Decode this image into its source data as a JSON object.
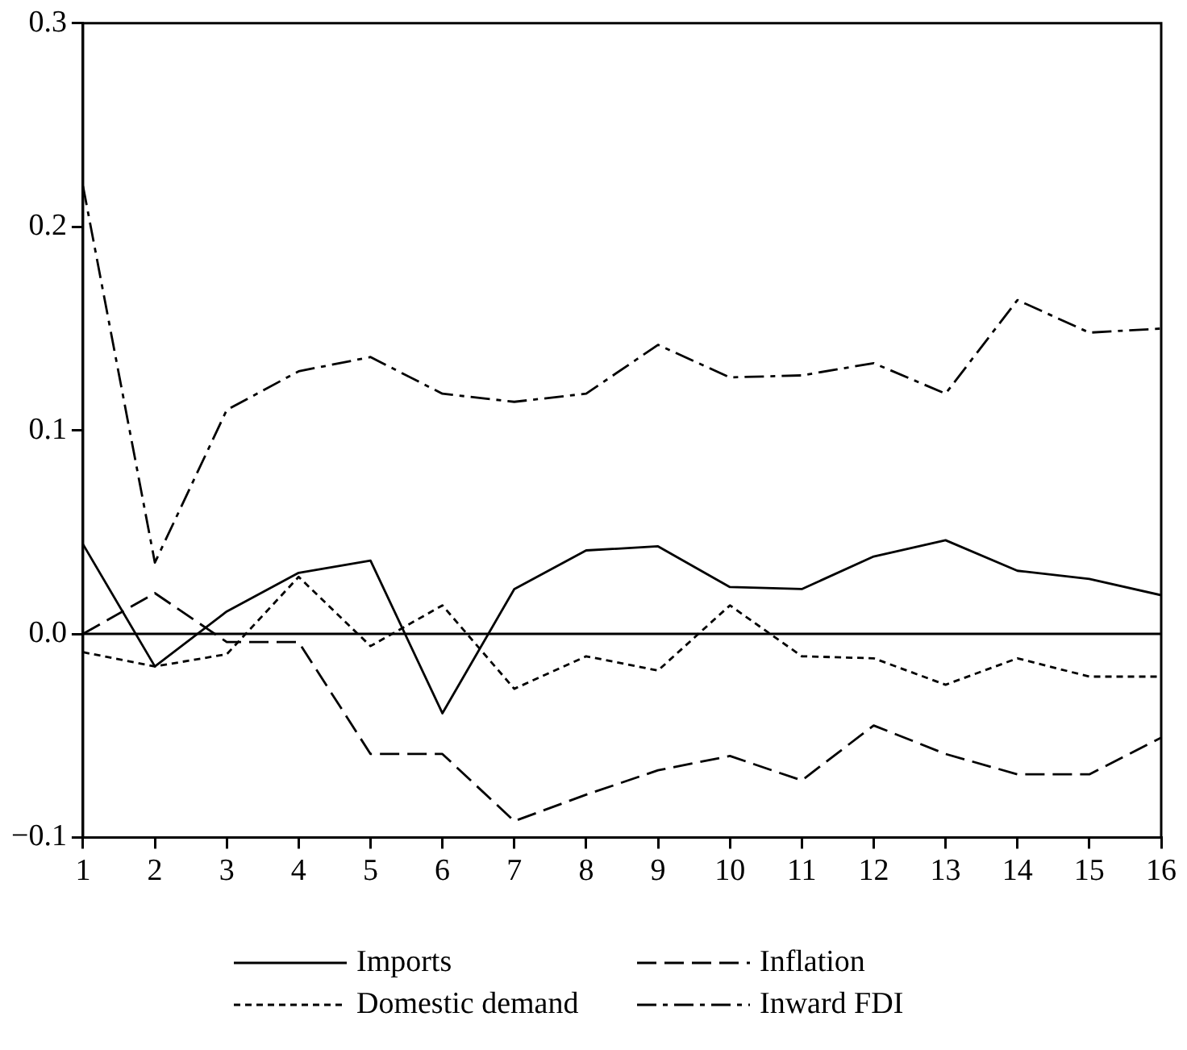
{
  "chart_data": {
    "type": "line",
    "x": [
      1,
      2,
      3,
      4,
      5,
      6,
      7,
      8,
      9,
      10,
      11,
      12,
      13,
      14,
      15,
      16
    ],
    "series": [
      {
        "name": "Imports",
        "color": "#000000",
        "line_style": "solid",
        "values": [
          0.044,
          -0.016,
          0.011,
          0.03,
          0.036,
          -0.039,
          0.022,
          0.041,
          0.043,
          0.023,
          0.022,
          0.038,
          0.046,
          0.031,
          0.027,
          0.019
        ]
      },
      {
        "name": "Inflation",
        "color": "#000000",
        "line_style": "dashed",
        "values": [
          0.0,
          0.02,
          -0.004,
          -0.004,
          -0.059,
          -0.059,
          -0.092,
          -0.079,
          -0.067,
          -0.06,
          -0.072,
          -0.045,
          -0.059,
          -0.069,
          -0.069,
          -0.051
        ]
      },
      {
        "name": "Domestic demand",
        "color": "#000000",
        "line_style": "dotted",
        "values": [
          -0.009,
          -0.016,
          -0.01,
          0.028,
          -0.006,
          0.014,
          -0.027,
          -0.011,
          -0.018,
          0.014,
          -0.011,
          -0.012,
          -0.025,
          -0.012,
          -0.021,
          -0.021
        ]
      },
      {
        "name": "Inward FDI",
        "color": "#000000",
        "line_style": "dashdot",
        "values": [
          0.22,
          0.035,
          0.11,
          0.129,
          0.136,
          0.118,
          0.114,
          0.118,
          0.142,
          0.126,
          0.127,
          0.133,
          0.118,
          0.164,
          0.148,
          0.15
        ]
      }
    ],
    "xlim": [
      1,
      16
    ],
    "xticks": [
      1,
      2,
      3,
      4,
      5,
      6,
      7,
      8,
      9,
      10,
      11,
      12,
      13,
      14,
      15,
      16
    ],
    "ylim": [
      -0.1,
      0.3
    ],
    "yticks": [
      {
        "value": -0.1,
        "label": "−0.1"
      },
      {
        "value": 0,
        "label": "0.0"
      },
      0.1,
      0.2,
      0.3
    ],
    "ref_lines": [
      {
        "axis": "y",
        "value": 0,
        "color": "#000000"
      }
    ],
    "grid": false,
    "legend": "bottom",
    "marker": "none"
  }
}
